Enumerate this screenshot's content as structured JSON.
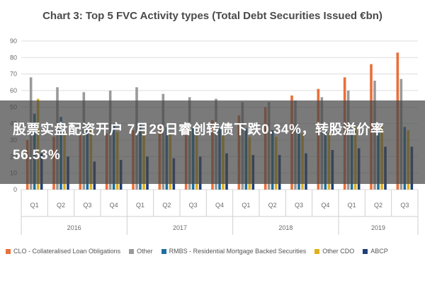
{
  "title": "Chart 3: Top 5 FVC Activity types (Total Debt Securities Issued €bn)",
  "headline": "股票实盘配资开户  7月29日睿创转债下跌0.34%，转股溢价率56.53%",
  "chart_data": {
    "type": "bar",
    "title": "Chart 3: Top 5 FVC Activity types (Total Debt Securities Issued €bn)",
    "ylim": [
      0,
      90
    ],
    "yticks": [
      0,
      10,
      20,
      30,
      40,
      50,
      60,
      70,
      80,
      90
    ],
    "grid": true,
    "legend_position": "bottom",
    "categories": [
      "Q1",
      "Q2",
      "Q3",
      "Q4",
      "Q1",
      "Q2",
      "Q3",
      "Q4",
      "Q1",
      "Q2",
      "Q3",
      "Q4",
      "Q1",
      "Q2",
      "Q3"
    ],
    "years": [
      {
        "label": "2016",
        "start": 0,
        "end": 3
      },
      {
        "label": "2017",
        "start": 4,
        "end": 7
      },
      {
        "label": "2018",
        "start": 8,
        "end": 11
      },
      {
        "label": "2019",
        "start": 12,
        "end": 14
      }
    ],
    "series": [
      {
        "name": "CLO - Collateralised Loan Obligations",
        "color": "#e8703a",
        "values": [
          30,
          32,
          33,
          34,
          36,
          38,
          40,
          42,
          45,
          50,
          57,
          61,
          68,
          76,
          83
        ]
      },
      {
        "name": "Other",
        "color": "#9a9a9a",
        "values": [
          68,
          62,
          59,
          60,
          62,
          58,
          56,
          55,
          53,
          53,
          54,
          56,
          60,
          66,
          67
        ]
      },
      {
        "name": "RMBS - Residential Mortgage Backed Securities",
        "color": "#1f6fa1",
        "values": [
          46,
          44,
          39,
          40,
          40,
          38,
          38,
          37,
          37,
          36,
          35,
          36,
          36,
          35,
          38
        ]
      },
      {
        "name": "Other CDO",
        "color": "#e0b01c",
        "values": [
          55,
          38,
          36,
          35,
          35,
          34,
          34,
          34,
          32,
          32,
          34,
          34,
          38,
          38,
          36
        ]
      },
      {
        "name": "ABCP",
        "color": "#1f3f7a",
        "values": [
          22,
          20,
          17,
          18,
          20,
          19,
          20,
          22,
          21,
          21,
          22,
          24,
          25,
          26,
          26
        ]
      }
    ]
  }
}
